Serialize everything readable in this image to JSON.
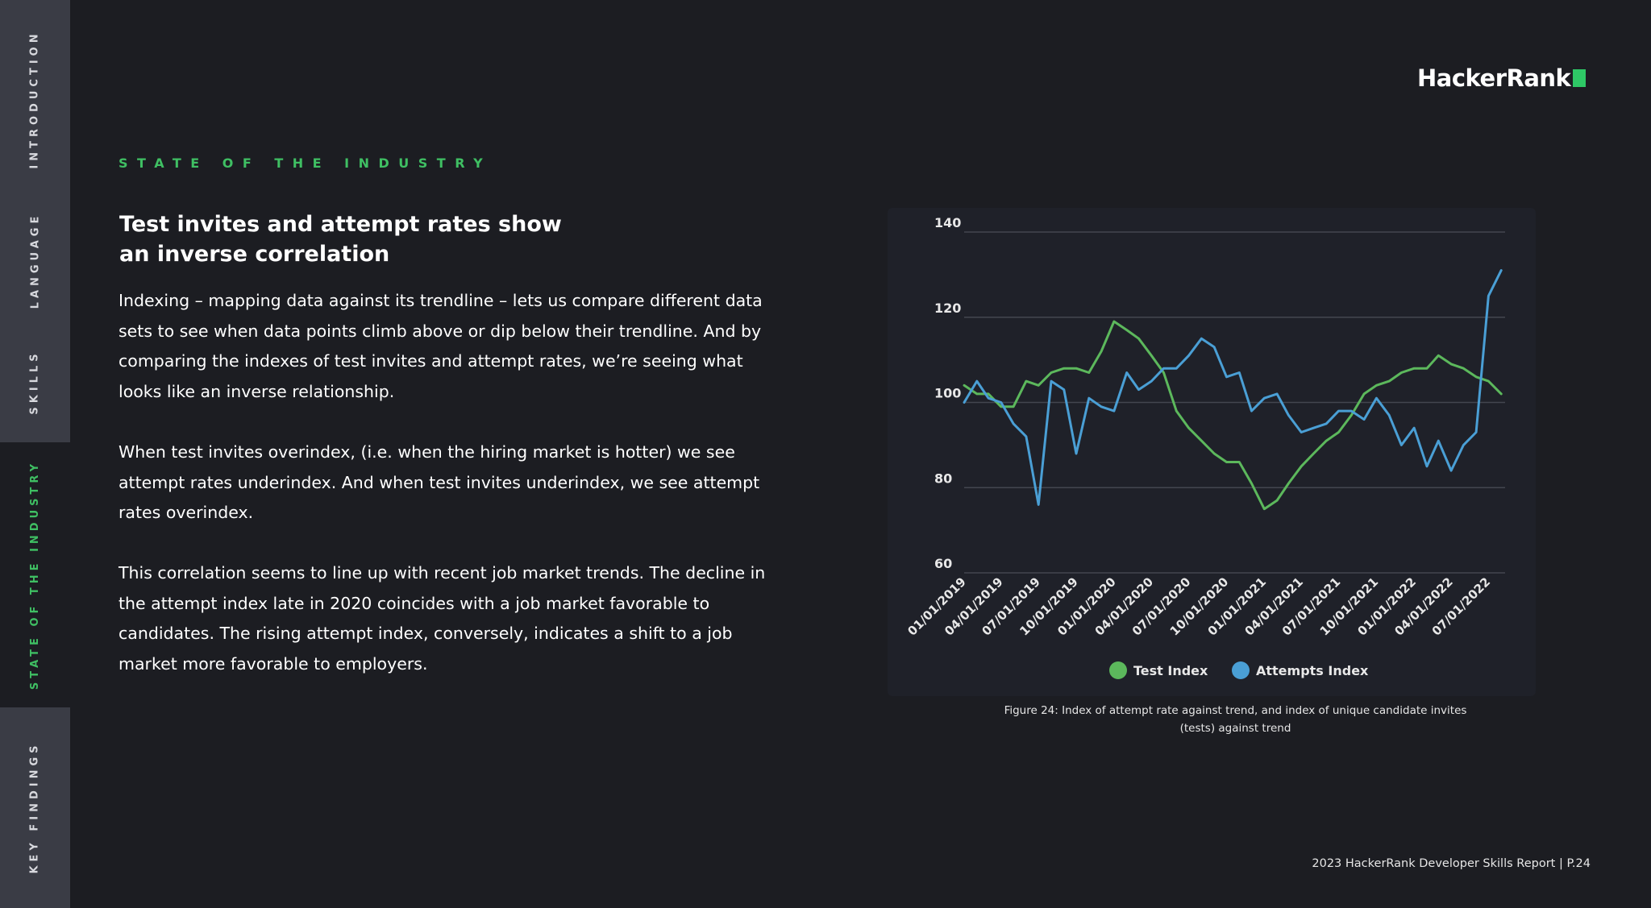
{
  "nav": {
    "items": [
      {
        "label": "INTRODUCTION",
        "active": false
      },
      {
        "label": "LANGUAGE",
        "active": false
      },
      {
        "label": "SKILLS",
        "active": false
      },
      {
        "label": "STATE OF THE INDUSTRY",
        "active": true
      },
      {
        "label": "KEY FINDINGS",
        "active": false
      }
    ]
  },
  "brand": {
    "logo_text": "HackerRank",
    "accent_color": "#2ec866"
  },
  "section": {
    "eyebrow": "STATE OF THE INDUSTRY"
  },
  "article": {
    "title": "Test invites and attempt rates show an inverse correlation",
    "paragraphs": [
      "Indexing – mapping data against its trendline – lets us compare different data sets to see when data points climb above or dip below their trendline. And by comparing the indexes of test invites and attempt rates, we’re seeing what looks like an inverse relationship.",
      "When test invites overindex, (i.e. when the hiring market is hotter) we see attempt rates underindex. And when test invites underindex, we see attempt rates overindex.",
      "This correlation seems to line up with recent job market trends. The decline in the attempt index late in 2020 coincides with a job market favorable to candidates. The rising attempt index, conversely, indicates a shift to a job market more favorable to employers."
    ]
  },
  "chart_data": {
    "type": "line",
    "title": "",
    "xlabel": "",
    "ylabel": "",
    "ylim": [
      60,
      140
    ],
    "yticks": [
      60,
      80,
      100,
      120,
      140
    ],
    "grid": true,
    "legend": "bottom-center",
    "xtick_labels": [
      "01/01/2019",
      "04/01/2019",
      "07/01/2019",
      "10/01/2019",
      "01/01/2020",
      "04/01/2020",
      "07/01/2020",
      "10/01/2020",
      "01/01/2021",
      "04/01/2021",
      "07/01/2021",
      "10/01/2021",
      "01/01/2022",
      "04/01/2022",
      "07/01/2022"
    ],
    "x": [
      "01/01/2019",
      "02/01/2019",
      "03/01/2019",
      "04/01/2019",
      "05/01/2019",
      "06/01/2019",
      "07/01/2019",
      "08/01/2019",
      "09/01/2019",
      "10/01/2019",
      "11/01/2019",
      "12/01/2019",
      "01/01/2020",
      "02/01/2020",
      "03/01/2020",
      "04/01/2020",
      "05/01/2020",
      "06/01/2020",
      "07/01/2020",
      "08/01/2020",
      "09/01/2020",
      "10/01/2020",
      "11/01/2020",
      "12/01/2020",
      "01/01/2021",
      "02/01/2021",
      "03/01/2021",
      "04/01/2021",
      "05/01/2021",
      "06/01/2021",
      "07/01/2021",
      "08/01/2021",
      "09/01/2021",
      "10/01/2021",
      "11/01/2021",
      "12/01/2021",
      "01/01/2022",
      "02/01/2022",
      "03/01/2022",
      "04/01/2022",
      "05/01/2022",
      "06/01/2022",
      "07/01/2022",
      "08/01/2022",
      "09/01/2022"
    ],
    "series": [
      {
        "name": "Test Index",
        "color": "#5cb85c",
        "values": [
          104,
          102,
          102,
          99,
          99,
          105,
          104,
          107,
          108,
          108,
          107,
          112,
          119,
          117,
          115,
          111,
          107,
          98,
          94,
          91,
          88,
          86,
          86,
          81,
          75,
          77,
          81,
          85,
          88,
          91,
          93,
          97,
          102,
          104,
          105,
          107,
          108,
          108,
          111,
          109,
          108,
          106,
          105,
          102,
          null
        ]
      },
      {
        "name": "Attempts Index",
        "color": "#4a9fd5",
        "values": [
          100,
          105,
          101,
          100,
          95,
          92,
          76,
          105,
          103,
          88,
          101,
          99,
          98,
          107,
          103,
          105,
          108,
          108,
          111,
          115,
          113,
          106,
          107,
          98,
          101,
          102,
          97,
          93,
          94,
          95,
          98,
          98,
          96,
          101,
          97,
          90,
          94,
          85,
          91,
          84,
          90,
          93,
          125,
          131,
          null
        ]
      }
    ]
  },
  "figure": {
    "caption": "Figure 24:  Index of attempt rate against trend, and index of unique candidate invites (tests) against trend"
  },
  "footer": {
    "text": "2023 HackerRank Developer Skills Report | P.24"
  }
}
